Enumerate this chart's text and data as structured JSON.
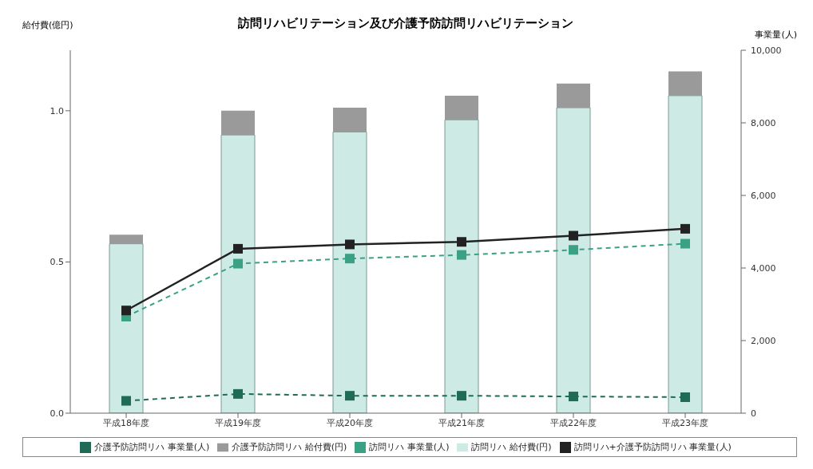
{
  "chart_data": {
    "type": "bar",
    "title": "訪問リハビリテーション及び介護予防訪問リハビリテーション",
    "ylabel": "給付費(億円)",
    "y2label": "事業量(人)",
    "categories": [
      "平成18年度",
      "平成19年度",
      "平成20年度",
      "平成21年度",
      "平成22年度",
      "平成23年度"
    ],
    "stacked": true,
    "series": [
      {
        "name": "訪問リハ 給付費(円)",
        "color": "#cdebe4",
        "values": [
          0.56,
          0.92,
          0.93,
          0.97,
          1.01,
          1.05
        ]
      },
      {
        "name": "介護予防訪問リハ 給付費(円)",
        "color": "#9a9a9a",
        "values": [
          0.03,
          0.08,
          0.08,
          0.08,
          0.08,
          0.08
        ]
      },
      {
        "name": "訪問リハ 事業量(人)",
        "type": "line",
        "axis": "y2",
        "line_style": "dashed",
        "color": "#3aa184",
        "values": [
          2660,
          4120,
          4260,
          4360,
          4500,
          4670
        ]
      },
      {
        "name": "介護予防訪問リハ 事業量(人)",
        "type": "line",
        "axis": "y2",
        "line_style": "dashed",
        "color": "#1f6b55",
        "values": [
          340,
          530,
          480,
          480,
          460,
          440
        ]
      },
      {
        "name": "訪問リハ+介護予防訪問リハ 事業量(人)",
        "type": "line",
        "axis": "y2",
        "line_style": "solid",
        "color": "#222222",
        "values": [
          2830,
          4530,
          4650,
          4720,
          4890,
          5080
        ]
      }
    ],
    "ylim": [
      0,
      1.2
    ],
    "yticks": [
      {
        "value": 0,
        "label": "0.0"
      },
      {
        "value": 0.5,
        "label": "0.5"
      },
      {
        "value": 1,
        "label": "1.0"
      }
    ],
    "y2lim": [
      0,
      10000
    ],
    "y2ticks": [
      0,
      {
        "value": 2000,
        "label": "2,000"
      },
      {
        "value": 4000,
        "label": "4,000"
      },
      {
        "value": 6000,
        "label": "6,000"
      },
      {
        "value": 8000,
        "label": "8,000"
      },
      {
        "value": 10000,
        "label": "10,000"
      }
    ],
    "marker": "square",
    "grid": false,
    "legend": "bottom"
  }
}
